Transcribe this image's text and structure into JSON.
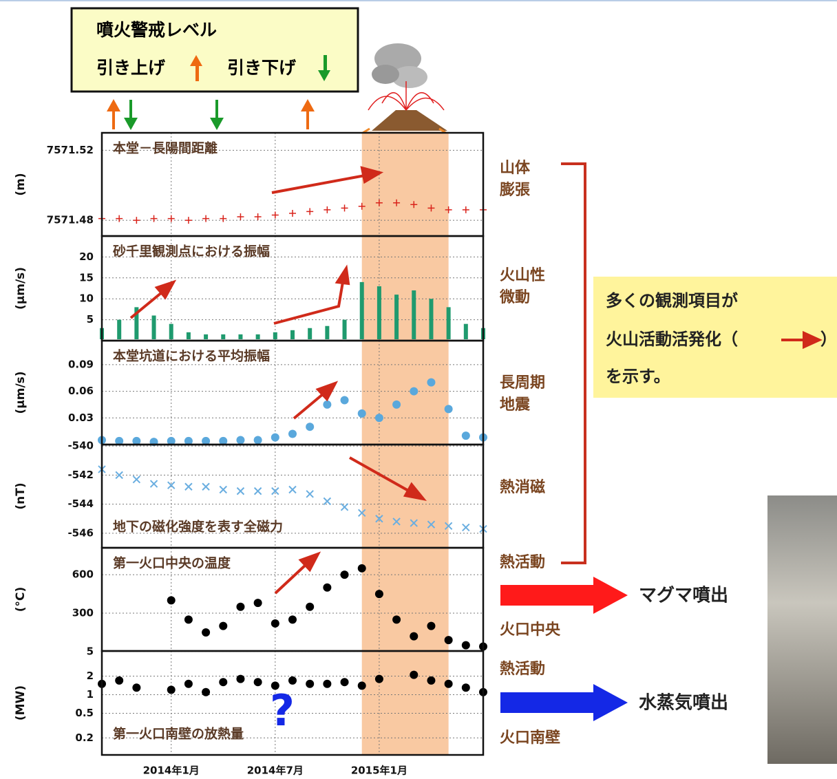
{
  "alert_box": {
    "title": "噴火警戒レベル",
    "raise": "引き上げ",
    "lower": "引き下げ"
  },
  "x_axis": {
    "xlim": [
      "2013-09",
      "2015-07"
    ],
    "xticks": [
      {
        "value": "2014-01",
        "label": "2014年1月"
      },
      {
        "value": "2014-07",
        "label": "2014年7月"
      },
      {
        "value": "2015-01",
        "label": "2015年1月"
      }
    ]
  },
  "shaded_period": {
    "from": "2014-12",
    "to": "2015-05",
    "color": "#f9c9a2"
  },
  "chart_data": [
    {
      "type": "scatter",
      "title": "本堂－長陽間距離",
      "y_label": "(m)",
      "marker": "plus",
      "color": "#d9231b",
      "x": [
        "2013-09",
        "2013-10",
        "2013-11",
        "2013-12",
        "2014-01",
        "2014-02",
        "2014-03",
        "2014-04",
        "2014-05",
        "2014-06",
        "2014-07",
        "2014-08",
        "2014-09",
        "2014-10",
        "2014-11",
        "2014-12",
        "2015-01",
        "2015-02",
        "2015-03",
        "2015-04",
        "2015-05",
        "2015-06",
        "2015-07"
      ],
      "values": [
        7571.481,
        7571.481,
        7571.48,
        7571.481,
        7571.481,
        7571.48,
        7571.481,
        7571.481,
        7571.482,
        7571.482,
        7571.483,
        7571.484,
        7571.485,
        7571.486,
        7571.487,
        7571.488,
        7571.49,
        7571.49,
        7571.489,
        7571.487,
        7571.486,
        7571.486,
        7571.486
      ],
      "ylim": [
        7571.471,
        7571.53
      ],
      "yticks": [
        7571.48,
        7571.52
      ]
    },
    {
      "type": "scatter",
      "title": "砂千里観測点における振幅",
      "y_label": "(μm/s)",
      "marker": "spike",
      "color": "#1f9a6e",
      "x": [
        "2013-09",
        "2013-10",
        "2013-11",
        "2013-12",
        "2014-01",
        "2014-02",
        "2014-03",
        "2014-04",
        "2014-05",
        "2014-06",
        "2014-07",
        "2014-08",
        "2014-09",
        "2014-10",
        "2014-11",
        "2014-12",
        "2015-01",
        "2015-02",
        "2015-03",
        "2015-04",
        "2015-05",
        "2015-06",
        "2015-07"
      ],
      "values": [
        3,
        5,
        8,
        6,
        4,
        2,
        1.5,
        1.5,
        1.5,
        1.5,
        2,
        2.5,
        3,
        3.5,
        5,
        14,
        13,
        11,
        12,
        10,
        8,
        4,
        3
      ],
      "ylim": [
        0,
        25
      ],
      "yticks": [
        5,
        10,
        15,
        20
      ]
    },
    {
      "type": "scatter",
      "title": "本堂坑道における平均振幅",
      "y_label": "(μm/s)",
      "marker": "dot",
      "color": "#5aa8dc",
      "x": [
        "2013-09",
        "2013-10",
        "2013-11",
        "2013-12",
        "2014-01",
        "2014-02",
        "2014-03",
        "2014-04",
        "2014-05",
        "2014-06",
        "2014-07",
        "2014-08",
        "2014-09",
        "2014-10",
        "2014-11",
        "2014-12",
        "2015-01",
        "2015-02",
        "2015-03",
        "2015-04",
        "2015-05",
        "2015-06",
        "2015-07"
      ],
      "values": [
        0.005,
        0.004,
        0.004,
        0.003,
        0.004,
        0.004,
        0.004,
        0.004,
        0.005,
        0.005,
        0.008,
        0.012,
        0.02,
        0.045,
        0.05,
        0.035,
        0.03,
        0.045,
        0.06,
        0.07,
        0.04,
        0.01,
        0.008
      ],
      "ylim": [
        0,
        0.117
      ],
      "yticks": [
        0.03,
        0.06,
        0.09
      ]
    },
    {
      "type": "scatter",
      "title": "地下の磁化強度を表す全磁力",
      "y_label": "(nT)",
      "marker": "x",
      "color": "#6aaee0",
      "x": [
        "2013-09",
        "2013-10",
        "2013-11",
        "2013-12",
        "2014-01",
        "2014-02",
        "2014-03",
        "2014-04",
        "2014-05",
        "2014-06",
        "2014-07",
        "2014-08",
        "2014-09",
        "2014-10",
        "2014-11",
        "2014-12",
        "2015-01",
        "2015-02",
        "2015-03",
        "2015-04",
        "2015-05",
        "2015-06",
        "2015-07"
      ],
      "values": [
        -541.6,
        -542.0,
        -542.3,
        -542.6,
        -542.7,
        -542.8,
        -542.8,
        -543.0,
        -543.1,
        -543.1,
        -543.1,
        -543.0,
        -543.3,
        -543.8,
        -544.2,
        -544.6,
        -545.0,
        -545.2,
        -545.3,
        -545.4,
        -545.5,
        -545.6,
        -545.7
      ],
      "ylim": [
        -547,
        -539.9
      ],
      "yticks": [
        -540,
        -542,
        -544,
        -546
      ]
    },
    {
      "type": "scatter",
      "title": "第一火口中央の温度",
      "y_label": "(°C)",
      "marker": "dot",
      "color": "#000000",
      "x": [
        "2013-09",
        "2013-10",
        "2013-11",
        "2013-12",
        "2014-01",
        "2014-02",
        "2014-03",
        "2014-04",
        "2014-05",
        "2014-06",
        "2014-07",
        "2014-08",
        "2014-09",
        "2014-10",
        "2014-11",
        "2014-12",
        "2015-01",
        "2015-02",
        "2015-03",
        "2015-04",
        "2015-05",
        "2015-06",
        "2015-07"
      ],
      "values": [
        null,
        null,
        null,
        null,
        400,
        250,
        150,
        200,
        350,
        380,
        220,
        250,
        350,
        500,
        600,
        650,
        450,
        250,
        120,
        200,
        90,
        50,
        40
      ],
      "ylim": [
        5,
        810
      ],
      "yticks": [
        300,
        600
      ]
    },
    {
      "type": "scatter",
      "title": "第一火口南壁の放熱量",
      "y_label": "(MW)",
      "marker": "dot",
      "color": "#000000",
      "log_scale": true,
      "x": [
        "2013-09",
        "2013-10",
        "2013-11",
        "2013-12",
        "2014-01",
        "2014-02",
        "2014-03",
        "2014-04",
        "2014-05",
        "2014-06",
        "2014-07",
        "2014-08",
        "2014-09",
        "2014-10",
        "2014-11",
        "2014-12",
        "2015-01",
        "2015-02",
        "2015-03",
        "2015-04",
        "2015-05",
        "2015-06",
        "2015-07"
      ],
      "values": [
        1.5,
        1.7,
        1.3,
        null,
        1.2,
        1.5,
        1.1,
        1.6,
        1.8,
        1.6,
        1.4,
        1.7,
        1.5,
        1.5,
        1.6,
        1.4,
        1.8,
        null,
        2.1,
        1.7,
        1.5,
        1.3,
        1.1
      ],
      "ylim": [
        0.106,
        5.1
      ],
      "yticks": [
        0.2,
        0.5,
        1,
        2,
        5
      ]
    }
  ],
  "side_labels": [
    [
      "山体",
      "膨張"
    ],
    [
      "火山性",
      "微動"
    ],
    [
      "長周期",
      "地震"
    ],
    [
      "熱消磁"
    ],
    [
      "熱活動"
    ],
    [
      "火口中央"
    ],
    [
      "熱活動"
    ],
    [
      "火口南壁"
    ]
  ],
  "callout": {
    "lines": [
      "多くの観測項目が",
      "火山活動活発化（",
      "）",
      "を示す。"
    ]
  },
  "outcomes": [
    {
      "label": "マグマ噴出",
      "color": "#ff1a1a"
    },
    {
      "label": "水蒸気噴出",
      "color": "#1428e6"
    }
  ],
  "question_mark": "?"
}
